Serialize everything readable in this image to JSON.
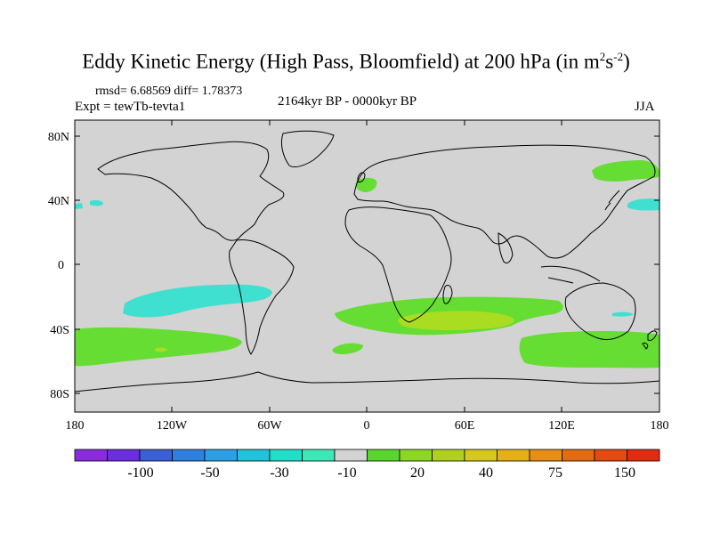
{
  "title": {
    "main": "Eddy Kinetic Energy (High Pass, Bloomfield) at 200 hPa (in m",
    "sup1": "2",
    "mid": "s",
    "sup2": "-2",
    "close": ")"
  },
  "stats": "rmsd= 6.68569 diff= 1.78373",
  "expt": "Expt = tewTb-tevta1",
  "period": "2164kyr BP - 0000kyr BP",
  "season": "JJA",
  "axes": {
    "lat_labels": [
      "80N",
      "40N",
      "0",
      "40S",
      "80S"
    ],
    "lon_labels": [
      "180",
      "120W",
      "60W",
      "0",
      "60E",
      "120E",
      "180"
    ]
  },
  "colorbar": {
    "colors": [
      "#8a2be2",
      "#6a2de0",
      "#3a5fd6",
      "#2f7fe0",
      "#2aa0e6",
      "#1ec4dc",
      "#1ee0c8",
      "#3ae8b8",
      "#d3d3d3",
      "#5ad62a",
      "#8cd820",
      "#b0d01c",
      "#d6c81a",
      "#e6b014",
      "#e88e12",
      "#e66a10",
      "#e64a10",
      "#e42a10"
    ],
    "labels": [
      "-100",
      "-50",
      "-30",
      "-10",
      "20",
      "40",
      "75",
      "150"
    ]
  },
  "colors": {
    "land_bg": "#d3d3d3",
    "cyan": "#40e0d0",
    "green": "#66dd33",
    "yellowgreen": "#aadd22"
  }
}
